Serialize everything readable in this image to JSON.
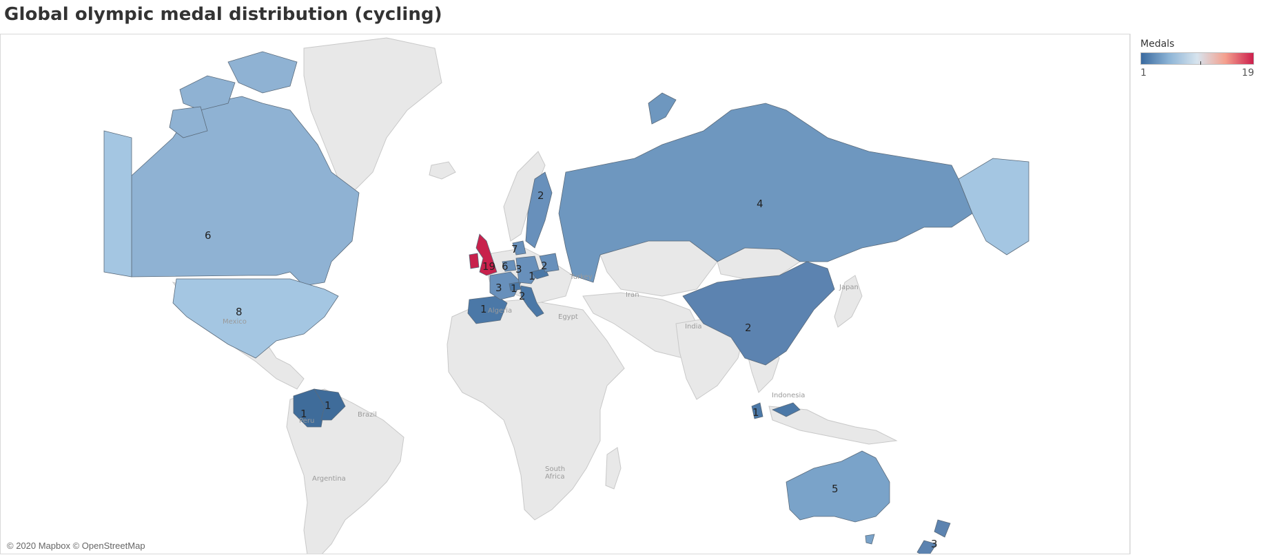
{
  "title": "Global olympic medal distribution (cycling)",
  "attribution": "© 2020 Mapbox © OpenStreetMap",
  "legend": {
    "title": "Medals",
    "min_label": "1",
    "max_label": "19",
    "colors": [
      "#3a6a9f",
      "#8db4d6",
      "#d7e4ee",
      "#f4a08e",
      "#cc1f4c"
    ]
  },
  "colors": {
    "land": "#e8e8e8",
    "land_border": "#c8c8c8",
    "ocean": "#ffffff"
  },
  "base_labels": [
    "Turkey",
    "Iran",
    "Algeria",
    "Egypt",
    "India",
    "Japan",
    "Mexico",
    "Indonesia",
    "Peru",
    "Brazil",
    "Argentina",
    "South",
    "Africa"
  ],
  "countries": [
    {
      "name": "United Kingdom",
      "medals": 19
    },
    {
      "name": "United States",
      "medals": 8
    },
    {
      "name": "Canada",
      "medals": 6
    },
    {
      "name": "Netherlands",
      "medals": 6
    },
    {
      "name": "Australia",
      "medals": 5
    },
    {
      "name": "Russia",
      "medals": 4
    },
    {
      "name": "France",
      "medals": 3
    },
    {
      "name": "Germany",
      "medals": 3
    },
    {
      "name": "New Zealand",
      "medals": 3
    },
    {
      "name": "Sweden",
      "medals": 2
    },
    {
      "name": "Poland",
      "medals": 2
    },
    {
      "name": "Italy",
      "medals": 2
    },
    {
      "name": "China",
      "medals": 2
    },
    {
      "name": "Spain",
      "medals": 1
    },
    {
      "name": "Switzerland",
      "medals": 1
    },
    {
      "name": "Czech Republic",
      "medals": 1
    },
    {
      "name": "Colombia",
      "medals": 1
    },
    {
      "name": "Venezuela",
      "medals": 1
    },
    {
      "name": "Malaysia",
      "medals": 1
    },
    {
      "name": "Denmark",
      "medals": 7
    }
  ]
}
